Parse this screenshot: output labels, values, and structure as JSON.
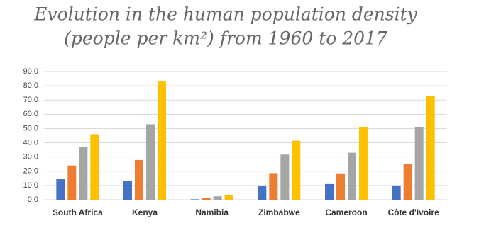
{
  "chart_data": {
    "type": "bar",
    "title": [
      "Evolution in the human population density",
      "(people per km²) from 1960 to 2017"
    ],
    "categories": [
      "South Africa",
      "Kenya",
      "Namibia",
      "Zimbabwe",
      "Cameroon",
      "Côte d'Ivoire"
    ],
    "series": [
      {
        "color": "#4472c4",
        "values": [
          14.4,
          13.4,
          0.3,
          9.5,
          11,
          10
        ]
      },
      {
        "color": "#ed7d31",
        "values": [
          24,
          27.9,
          1.1,
          18.7,
          18.5,
          25
        ]
      },
      {
        "color": "#a5a5a5",
        "values": [
          37,
          53,
          2.4,
          31.7,
          33,
          51
        ]
      },
      {
        "color": "#ffc000",
        "values": [
          46,
          83,
          3.2,
          41.5,
          51,
          73
        ]
      }
    ],
    "ylim": [
      0,
      90
    ],
    "yticks": [
      {
        "value": 0,
        "label": "0,0"
      },
      {
        "value": 10,
        "label": "10,0"
      },
      {
        "value": 20,
        "label": "20,0"
      },
      {
        "value": 30,
        "label": "30,0"
      },
      {
        "value": 40,
        "label": "40,0"
      },
      {
        "value": 50,
        "label": "50,0"
      },
      {
        "value": 60,
        "label": "60,0"
      },
      {
        "value": 70,
        "label": "70,0"
      },
      {
        "value": 80,
        "label": "80,0"
      },
      {
        "value": 90,
        "label": "90,0"
      }
    ],
    "grid": true
  }
}
